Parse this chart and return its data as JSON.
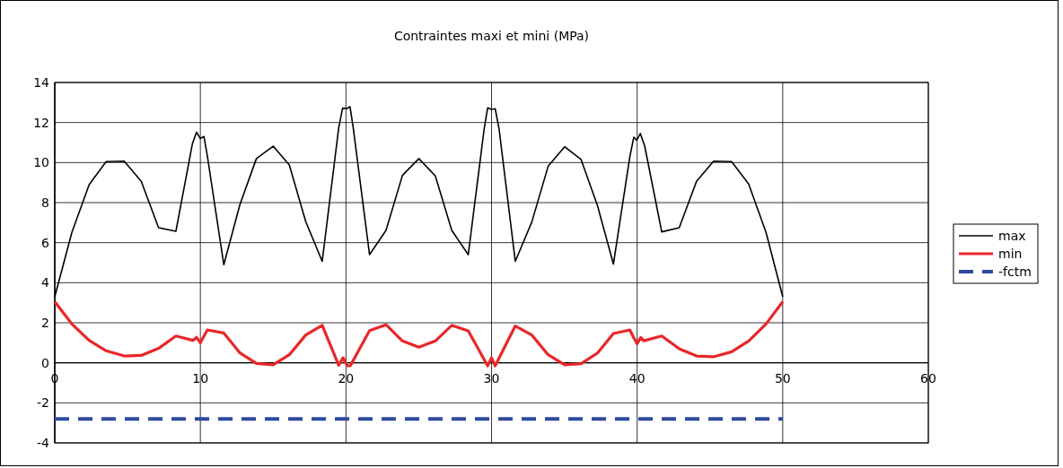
{
  "chart_data": {
    "type": "line",
    "title": "Contraintes maxi et mini (MPa)",
    "xlim": [
      0,
      60
    ],
    "xticks": [
      0,
      10,
      20,
      30,
      40,
      50,
      60
    ],
    "ylim": [
      -4,
      14
    ],
    "yticks": [
      -4,
      -2,
      0,
      2,
      4,
      6,
      8,
      10,
      12,
      14
    ],
    "grid": true,
    "legend": "right",
    "marker": "none",
    "series": [
      {
        "name": "max",
        "color": "#000000",
        "line_style": "solid",
        "x": [
          0,
          1.17,
          2.36,
          3.53,
          4.77,
          5.94,
          7.13,
          8.32,
          9.45,
          9.74,
          10.0,
          10.25,
          10.48,
          11.61,
          12.72,
          13.85,
          15.0,
          16.11,
          17.24,
          18.37,
          19.5,
          19.77,
          20.04,
          20.28,
          20.49,
          21.62,
          22.75,
          23.88,
          25.01,
          26.14,
          27.27,
          28.4,
          29.49,
          29.73,
          30.0,
          30.25,
          30.52,
          31.63,
          32.76,
          33.89,
          35.02,
          36.15,
          37.28,
          38.37,
          39.5,
          39.77,
          39.97,
          40.22,
          40.52,
          41.69,
          42.89,
          44.08,
          45.25,
          46.49,
          47.66,
          48.85,
          50.0
        ],
        "values": [
          3.3,
          6.5,
          8.9,
          10.05,
          10.07,
          9.06,
          6.75,
          6.57,
          10.93,
          11.52,
          11.2,
          11.3,
          10.33,
          4.9,
          7.91,
          10.2,
          10.82,
          9.88,
          7.05,
          5.07,
          11.72,
          12.72,
          12.69,
          12.79,
          11.79,
          5.4,
          6.61,
          9.36,
          10.2,
          9.33,
          6.61,
          5.4,
          11.67,
          12.73,
          12.66,
          12.69,
          11.67,
          5.07,
          7.02,
          9.82,
          10.79,
          10.15,
          7.84,
          4.93,
          10.3,
          11.27,
          11.12,
          11.45,
          10.82,
          6.54,
          6.75,
          9.06,
          10.07,
          10.05,
          8.93,
          6.52,
          3.3
        ]
      },
      {
        "name": "min",
        "color": "#e8272a",
        "line_style": "solid",
        "x": [
          0,
          1.17,
          2.36,
          3.53,
          4.77,
          5.94,
          7.13,
          8.32,
          9.49,
          9.74,
          10.0,
          10.48,
          11.61,
          12.72,
          13.85,
          15.0,
          16.11,
          17.24,
          18.37,
          19.5,
          19.8,
          20.1,
          20.3,
          21.62,
          22.75,
          23.88,
          25.01,
          26.14,
          27.27,
          28.4,
          29.73,
          30.0,
          30.25,
          31.63,
          32.76,
          33.89,
          35.02,
          36.15,
          37.28,
          38.37,
          39.5,
          39.75,
          40.0,
          40.25,
          40.45,
          41.69,
          42.89,
          44.08,
          45.25,
          46.49,
          47.66,
          48.85,
          50.0
        ],
        "values": [
          3.05,
          1.94,
          1.12,
          0.6,
          0.34,
          0.37,
          0.72,
          1.34,
          1.12,
          1.27,
          1.0,
          1.64,
          1.49,
          0.49,
          -0.03,
          -0.1,
          0.4,
          1.39,
          1.87,
          -0.12,
          0.25,
          -0.15,
          -0.15,
          1.61,
          1.9,
          1.09,
          0.78,
          1.09,
          1.87,
          1.6,
          -0.15,
          0.25,
          -0.15,
          1.84,
          1.39,
          0.4,
          -0.1,
          -0.04,
          0.49,
          1.46,
          1.64,
          1.27,
          0.95,
          1.27,
          1.1,
          1.34,
          0.7,
          0.34,
          0.3,
          0.55,
          1.09,
          1.94,
          3.05
        ]
      },
      {
        "name": "-fctm",
        "color": "#2e4a9e",
        "line_style": "dashed",
        "x": [
          0,
          50
        ],
        "values": [
          -2.8,
          -2.8
        ]
      }
    ]
  }
}
